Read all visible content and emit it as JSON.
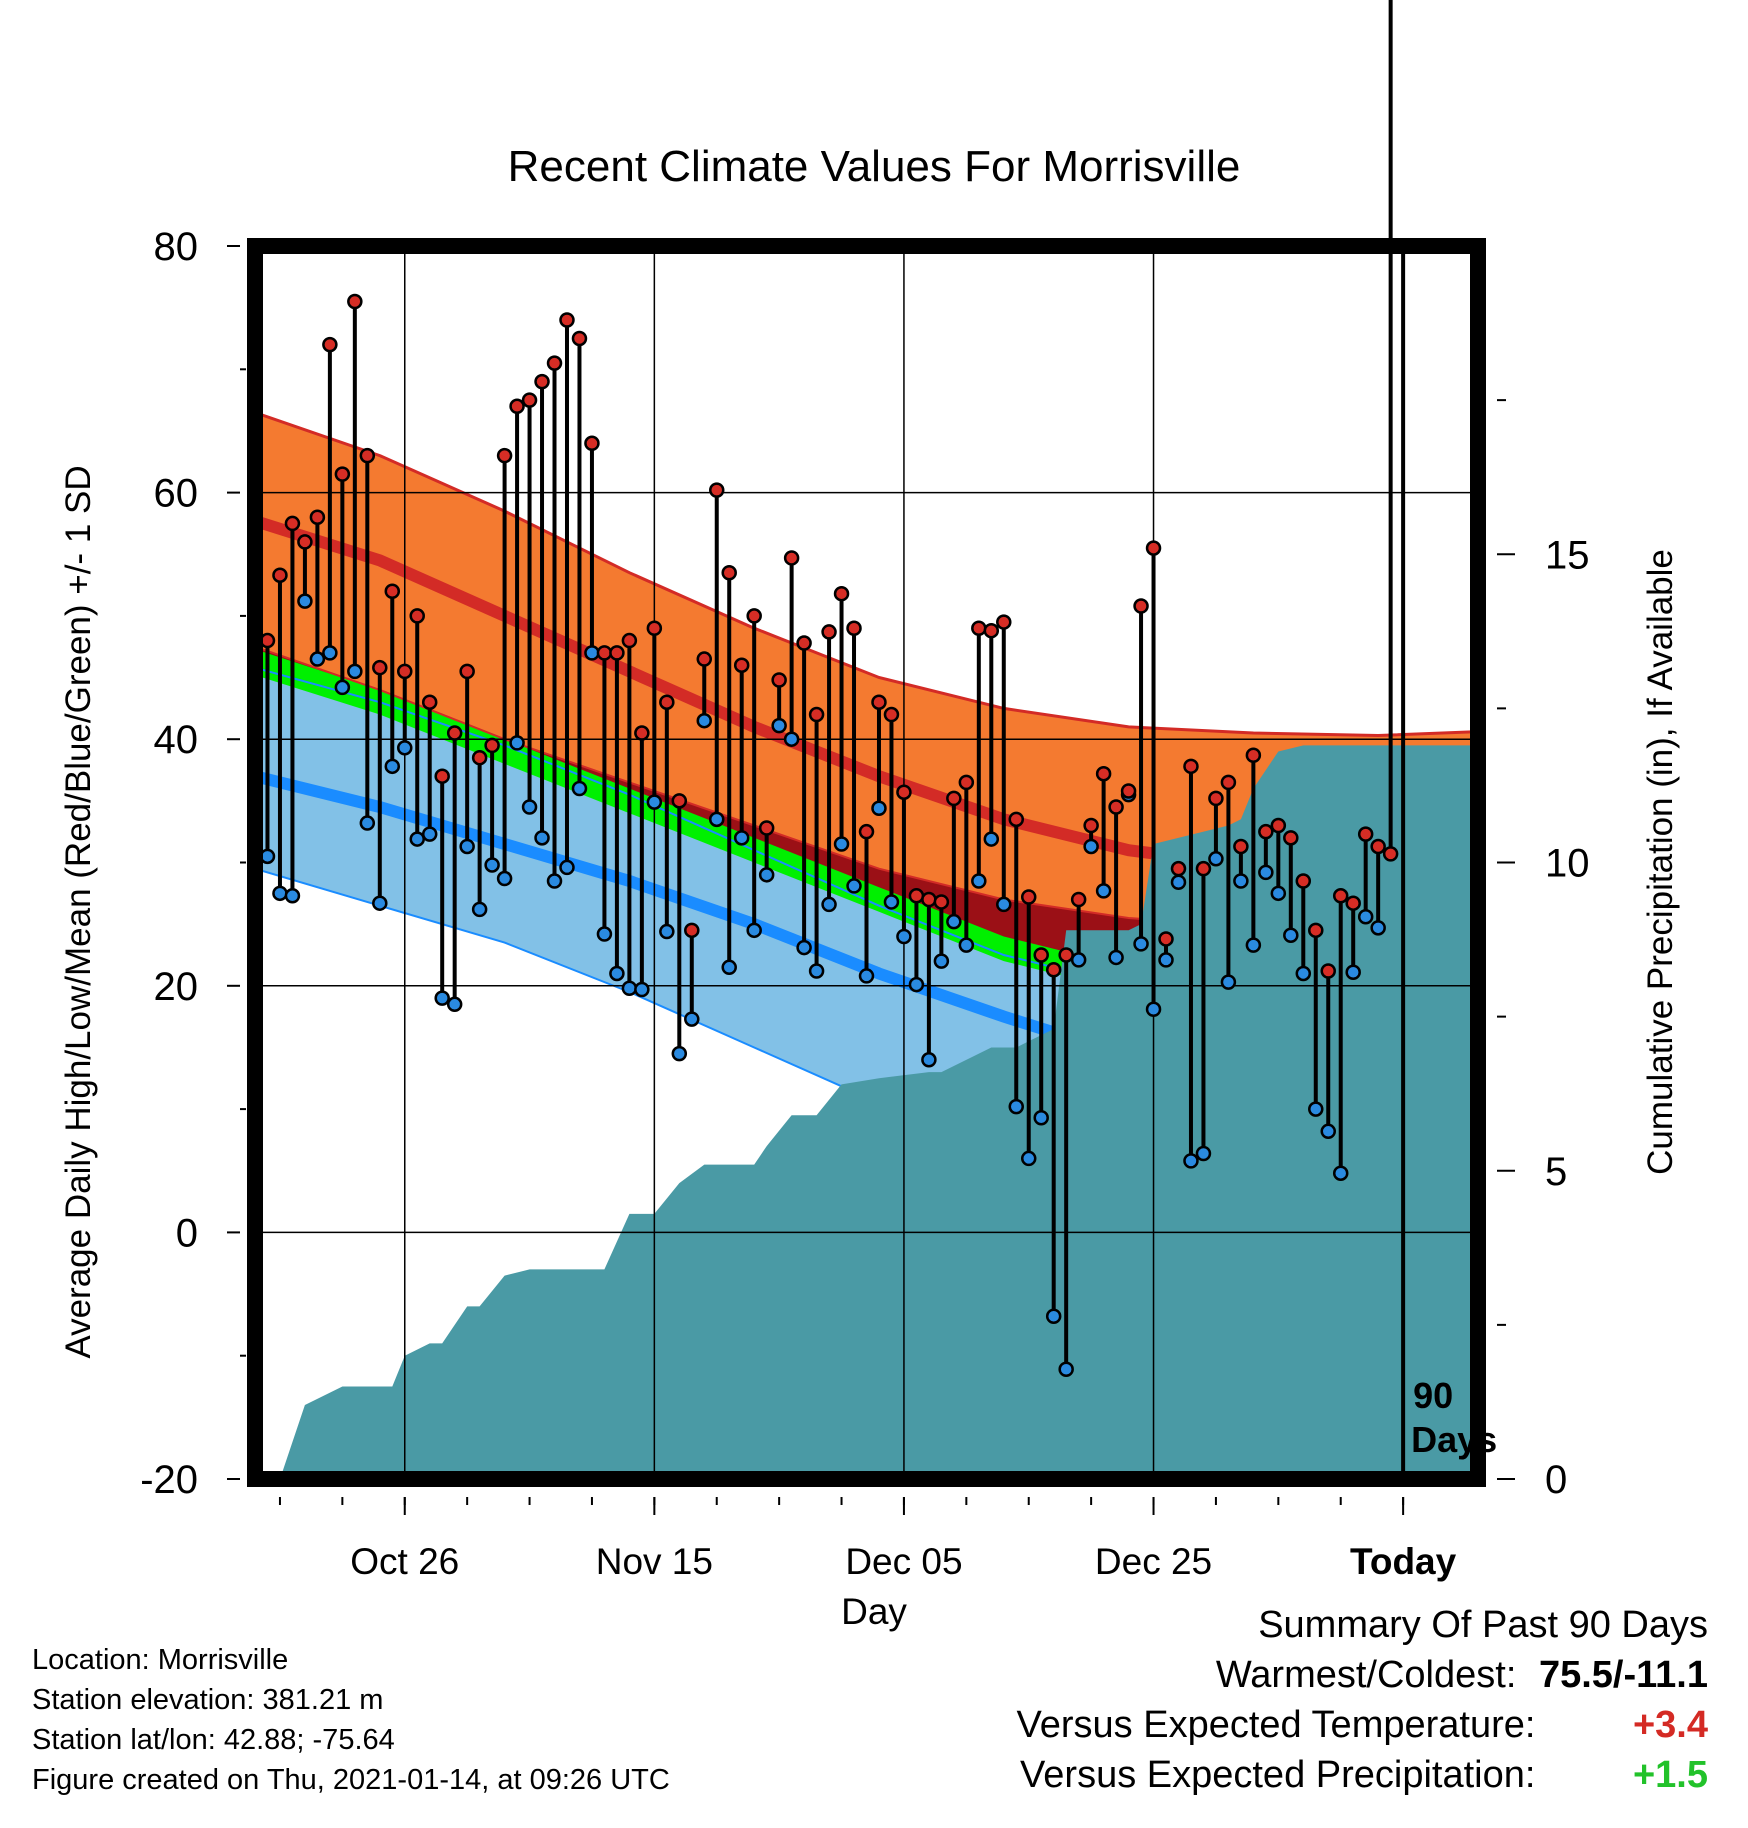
{
  "chart_data": {
    "type": "line",
    "title": "Recent Climate Values For Morrisville",
    "xlabel": "Day",
    "ylabel": "Average Daily High/Low/Mean (Red/Blue/Green) +/- 1 SD",
    "y2label": "Cumulative Precipitation (in), If Available",
    "ylim": [
      -20,
      80
    ],
    "y2lim": [
      0,
      20
    ],
    "yticks": [
      "80",
      "60",
      "40",
      "20",
      "0",
      "-20"
    ],
    "y2ticks": [
      "15",
      "10",
      "5",
      "0"
    ],
    "xlim_days": [
      -90,
      8
    ],
    "xticks": [
      {
        "day": -78,
        "label": "Oct 26"
      },
      {
        "day": -58,
        "label": "Nov 15"
      },
      {
        "day": -38,
        "label": "Dec 05"
      },
      {
        "day": -18,
        "label": "Dec 25"
      },
      {
        "day": 2,
        "label": "Today"
      }
    ],
    "today_marker": {
      "day": 2,
      "label_line1": "90",
      "label_line2": "Days"
    },
    "normals": {
      "days": [
        -90,
        -80,
        -70,
        -60,
        -50,
        -40,
        -30,
        -20,
        -10,
        0,
        10
      ],
      "high_plus_sd": [
        66.5,
        63,
        58.5,
        53.5,
        49,
        45,
        42.5,
        41,
        40.5,
        40.3,
        40.7
      ],
      "high_mean": [
        57.7,
        54.5,
        50,
        45.5,
        41,
        37,
        33.5,
        31,
        29.7,
        29.2,
        29.7
      ],
      "high_minus_sd": [
        47.5,
        44,
        40,
        36.5,
        33,
        29.5,
        27,
        25.5,
        24.8,
        24.3,
        24.6
      ],
      "avg_mean_upper": [
        47.3,
        44,
        40,
        36,
        32,
        28,
        24,
        21.5,
        20.3,
        19.8,
        19.8
      ],
      "avg_mean_lower": [
        45.2,
        42,
        38,
        34,
        30,
        26,
        22,
        19.5,
        18.3,
        17.8,
        18.0
      ],
      "low_plus_sd": [
        45.8,
        43,
        39.5,
        35.5,
        31,
        26.5,
        22.5,
        20,
        18.5,
        17.6,
        18.0
      ],
      "low_mean": [
        37,
        34.5,
        31.5,
        28.5,
        25,
        21,
        17.5,
        14.3,
        12.3,
        11.1,
        10.8
      ],
      "low_minus_sd": [
        29.5,
        26.5,
        23.5,
        19.5,
        15,
        10.5,
        5.5,
        2,
        -1.5,
        -3.5,
        -4.5
      ]
    },
    "daily_high": [
      48,
      53.3,
      57.5,
      56,
      58,
      72,
      61.5,
      75.5,
      63,
      45.8,
      52,
      45.5,
      50,
      43,
      37,
      40.5,
      45.5,
      38.5,
      39.5,
      63,
      67,
      67.5,
      69,
      70.5,
      74,
      72.5,
      64,
      47,
      47,
      48,
      40.5,
      49,
      43,
      35,
      24.5,
      46.5,
      60.2,
      53.5,
      46,
      50,
      32.8,
      44.8,
      54.7,
      47.8,
      42,
      48.7,
      51.8,
      49,
      32.5,
      43,
      42,
      35.7,
      27.3,
      27,
      26.8,
      35.2,
      36.5,
      49,
      48.8,
      49.5,
      33.5,
      27.2,
      22.5,
      21.3,
      22.5,
      27,
      33,
      37.2,
      34.5,
      35.8,
      50.8,
      55.5,
      23.8,
      29.5,
      37.8,
      29.5,
      35.2,
      36.5,
      31.3,
      38.7,
      32.5,
      33,
      32,
      28.5,
      24.5,
      21.2,
      27.3,
      26.7,
      32.3,
      31.3,
      30.7
    ],
    "daily_low": [
      30.5,
      27.5,
      27.3,
      51.2,
      46.5,
      47,
      44.2,
      45.5,
      33.2,
      26.7,
      37.8,
      39.3,
      31.9,
      32.3,
      19,
      18.5,
      31.3,
      26.2,
      29.8,
      28.7,
      39.7,
      34.5,
      32,
      28.5,
      29.6,
      36,
      47,
      24.2,
      21,
      19.8,
      19.7,
      34.9,
      24.4,
      14.5,
      17.3,
      41.5,
      33.5,
      21.5,
      32,
      24.5,
      29,
      41.1,
      40,
      23.1,
      21.2,
      26.6,
      31.5,
      28.1,
      20.8,
      34.4,
      26.8,
      24,
      20.1,
      14,
      22,
      25.2,
      23.3,
      28.5,
      31.9,
      26.6,
      10.2,
      6,
      9.3,
      -6.8,
      -11.1,
      22.1,
      31.3,
      27.7,
      22.3,
      35.5,
      23.4,
      18.1,
      22.1,
      28.4,
      5.8,
      6.4,
      30.3,
      20.3,
      28.5,
      23.3,
      29.2,
      27.5,
      24.1,
      21,
      10,
      8.2,
      4.8,
      21.1,
      25.6,
      24.7
    ],
    "precip_cumulative": {
      "days": [
        -88,
        -86,
        -83,
        -79,
        -78,
        -76,
        -75,
        -73,
        -72,
        -70,
        -68,
        -64,
        -62,
        -60,
        -58,
        -56,
        -54,
        -50,
        -49,
        -47,
        -45,
        -43,
        -40,
        -36,
        -35,
        -31,
        -30,
        -29,
        -28,
        -26,
        -25,
        -20,
        -19,
        -18,
        -12,
        -11,
        -10,
        -8,
        -6,
        0,
        8
      ],
      "values": [
        0,
        1.2,
        1.5,
        1.5,
        2.0,
        2.2,
        2.2,
        2.8,
        2.8,
        3.3,
        3.4,
        3.4,
        3.4,
        4.3,
        4.3,
        4.8,
        5.1,
        5.1,
        5.4,
        5.9,
        5.9,
        6.4,
        6.5,
        6.6,
        6.6,
        7.0,
        7.0,
        7.0,
        7.1,
        7.3,
        8.9,
        8.9,
        9.0,
        10.3,
        10.6,
        10.7,
        11.2,
        11.8,
        11.9,
        11.9,
        11.9
      ]
    }
  },
  "station": {
    "location": "Location: Morrisville",
    "elevation": "Station elevation: 381.21 m",
    "latlon": "Station lat/lon: 42.88; -75.64",
    "created": "Figure created on Thu, 2021-01-14, at 09:26 UTC"
  },
  "summary": {
    "heading": "Summary Of Past 90 Days",
    "warmest_label": "Warmest/Coldest:",
    "warmest_value": "75.5/-11.1",
    "temp_label": "Versus Expected Temperature:",
    "temp_value": "+3.4",
    "precip_label": "Versus Expected Precipitation:",
    "precip_value": "+1.5"
  },
  "colors": {
    "high_band": "#f47a30",
    "high_line": "#d32b26",
    "mean_band": "#00f000",
    "high_low_overlap": "#9b1016",
    "low_band": "#82c1e7",
    "low_line": "#1a8cff",
    "precip": "#4a9aa5",
    "high_dot": "#d62d25",
    "low_dot": "#2a8ae0",
    "temp_value": "#d42a24",
    "precip_value": "#22c22a"
  }
}
